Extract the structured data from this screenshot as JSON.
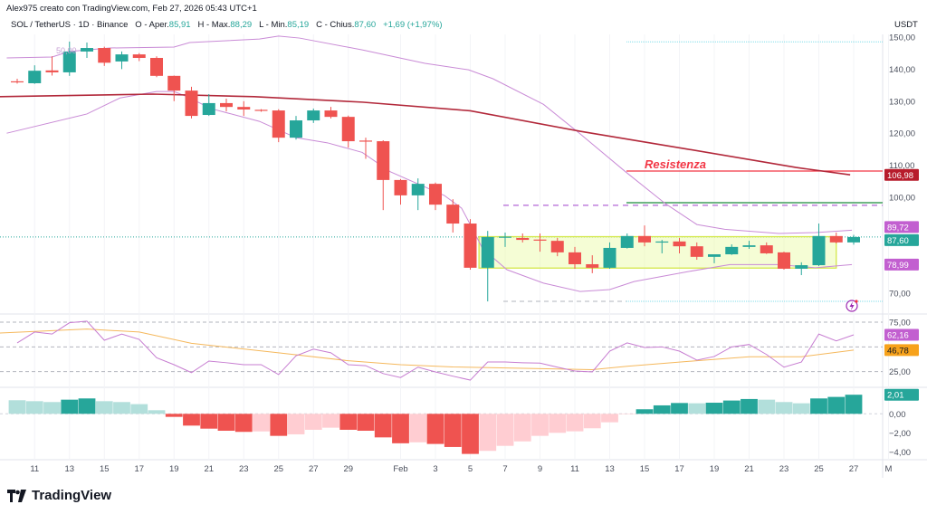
{
  "header": {
    "credit": "Alex975 creato con TradingView.com, Feb 27, 2026 05:43 UTC+1",
    "symbol": "SOL / TetherUS · 1D · Binance",
    "open_label": "O - Aper.",
    "open": "85,91",
    "high_label": "H - Max.",
    "high": "88,29",
    "low_label": "L - Min.",
    "low": "85,19",
    "close_label": "C - Chius.",
    "close": "87,60",
    "change": "+1,69 (+1,97%)"
  },
  "colors": {
    "up": "#26a69a",
    "down": "#ef5350",
    "up_light": "#b2dfdb",
    "down_light": "#ffcdd2",
    "ma": "#b2283a",
    "bands": "#c98bd6",
    "resistance": "#f23645",
    "rsi": "#c77dd1",
    "rsi_ma": "#f5b85c"
  },
  "price_axis": {
    "currency": "USDT",
    "ticks": [
      {
        "v": 150,
        "t": "150,00"
      },
      {
        "v": 140,
        "t": "140,00"
      },
      {
        "v": 130,
        "t": "130,00"
      },
      {
        "v": 120,
        "t": "120,00"
      },
      {
        "v": 110,
        "t": "110,00"
      },
      {
        "v": 100,
        "t": "100,00"
      },
      {
        "v": 70,
        "t": "70,00"
      }
    ],
    "badges": [
      {
        "v": 106.98,
        "t": "106,98",
        "color": "#b71c2c"
      },
      {
        "v": 89.72,
        "t": "89,72",
        "color": "#c25fd0"
      },
      {
        "v": 87.6,
        "t": "87,60",
        "color": "#26a69a"
      },
      {
        "v": 78.99,
        "t": "78,99",
        "color": "#c25fd0"
      }
    ]
  },
  "rsi_axis": {
    "ticks": [
      {
        "v": 75,
        "t": "75,00"
      },
      {
        "v": 25,
        "t": "25,00"
      }
    ],
    "badges": [
      {
        "v": 62.16,
        "t": "62,16",
        "color": "#c25fd0",
        "fg": "#fff"
      },
      {
        "v": 46.78,
        "t": "46,78",
        "color": "#f7a21b",
        "fg": "#131722"
      }
    ]
  },
  "macd_axis": {
    "ticks": [
      {
        "v": 0,
        "t": "0,00"
      },
      {
        "v": -2,
        "t": "−2,00"
      },
      {
        "v": -4,
        "t": "−4,00"
      }
    ],
    "badges": [
      {
        "v": 2.01,
        "t": "2,01",
        "color": "#26a69a"
      }
    ]
  },
  "time_axis": {
    "labels": [
      {
        "d": 1,
        "t": "11"
      },
      {
        "d": 3,
        "t": "13"
      },
      {
        "d": 5,
        "t": "15"
      },
      {
        "d": 7,
        "t": "17"
      },
      {
        "d": 9,
        "t": "19"
      },
      {
        "d": 11,
        "t": "21"
      },
      {
        "d": 13,
        "t": "23"
      },
      {
        "d": 15,
        "t": "25"
      },
      {
        "d": 17,
        "t": "27"
      },
      {
        "d": 19,
        "t": "29"
      },
      {
        "d": 22,
        "t": "Feb"
      },
      {
        "d": 24,
        "t": "3"
      },
      {
        "d": 26,
        "t": "5"
      },
      {
        "d": 28,
        "t": "7"
      },
      {
        "d": 30,
        "t": "9"
      },
      {
        "d": 32,
        "t": "11"
      },
      {
        "d": 34,
        "t": "13"
      },
      {
        "d": 36,
        "t": "15"
      },
      {
        "d": 38,
        "t": "17"
      },
      {
        "d": 40,
        "t": "19"
      },
      {
        "d": 42,
        "t": "21"
      },
      {
        "d": 44,
        "t": "23"
      },
      {
        "d": 46,
        "t": "25"
      },
      {
        "d": 48,
        "t": "27"
      },
      {
        "d": 50,
        "t": "M"
      }
    ]
  },
  "annotations": {
    "resistance_label": "Resistenza",
    "fib_label": "50,00"
  },
  "logo": {
    "text": "TradingView"
  },
  "chart_data": {
    "type": "candlestick",
    "first_date": "Jan 10",
    "last_date": "Feb 27",
    "ohlc": [
      [
        136.2,
        137,
        135.5,
        135.9
      ],
      [
        135.6,
        141.2,
        135.4,
        139.5
      ],
      [
        139.6,
        144,
        138,
        139
      ],
      [
        139,
        148.6,
        137.9,
        145.5
      ],
      [
        145.5,
        148.3,
        143.5,
        146.6
      ],
      [
        146.6,
        147,
        141,
        142
      ],
      [
        142.4,
        145.5,
        140,
        144.6
      ],
      [
        144.6,
        145,
        142.5,
        143.5
      ],
      [
        143.5,
        144,
        137.5,
        137.9
      ],
      [
        137.9,
        138,
        130,
        133.3
      ],
      [
        133.3,
        134.5,
        124.6,
        125.4
      ],
      [
        125.7,
        132.2,
        125.4,
        129.4
      ],
      [
        129.4,
        130.8,
        126.8,
        128.2
      ],
      [
        128.2,
        130,
        125.4,
        127.4
      ],
      [
        127.3,
        127.5,
        126.7,
        127.1
      ],
      [
        127.1,
        127.5,
        117.2,
        118.6
      ],
      [
        118.6,
        125.4,
        118,
        124
      ],
      [
        124,
        127.7,
        123.2,
        127.1
      ],
      [
        127.1,
        128.2,
        124.6,
        125.1
      ],
      [
        125.1,
        125.5,
        115.5,
        117.5
      ],
      [
        117.7,
        118.6,
        112,
        117.5
      ],
      [
        117.5,
        117.8,
        96,
        105.4
      ],
      [
        105.4,
        105.7,
        97.7,
        100.6
      ],
      [
        100.6,
        105.9,
        96,
        104.2
      ],
      [
        104.2,
        104.6,
        96,
        97.7
      ],
      [
        97.7,
        99.4,
        89,
        91.8
      ],
      [
        91.8,
        93.2,
        77.4,
        78
      ],
      [
        78,
        89.5,
        67.5,
        87.6
      ],
      [
        87.5,
        89,
        84.5,
        87.7
      ],
      [
        87.3,
        88.7,
        85.9,
        86.7
      ],
      [
        86.8,
        88.7,
        83,
        86.6
      ],
      [
        86.4,
        87.3,
        81.6,
        82.8
      ],
      [
        82.8,
        84.5,
        77.7,
        79.1
      ],
      [
        79.1,
        81.9,
        76.3,
        78
      ],
      [
        78,
        85.9,
        77.7,
        84.2
      ],
      [
        84.2,
        88.7,
        84,
        87.9
      ],
      [
        87.9,
        91.2,
        84.7,
        85.9
      ],
      [
        86,
        86.7,
        82.5,
        86.2
      ],
      [
        86.2,
        87.3,
        82.5,
        84.7
      ],
      [
        84.7,
        85.9,
        80.5,
        81.4
      ],
      [
        81.4,
        82.2,
        79.4,
        82.2
      ],
      [
        82.2,
        85.3,
        82,
        84.5
      ],
      [
        84.5,
        86.4,
        83.9,
        85
      ],
      [
        85,
        85.9,
        82.3,
        82.5
      ],
      [
        82.8,
        83,
        77.4,
        77.7
      ],
      [
        77.7,
        79.7,
        75.7,
        78.8
      ],
      [
        78.8,
        91.8,
        78.5,
        87.9
      ],
      [
        87.9,
        89,
        85.6,
        85.91
      ],
      [
        85.91,
        88.29,
        85.19,
        87.6
      ]
    ],
    "moving_average": [
      [
        -1,
        131.4
      ],
      [
        7.8,
        132.2
      ],
      [
        13.6,
        131.4
      ],
      [
        19.8,
        129.7
      ],
      [
        26,
        127
      ],
      [
        32.3,
        120.6
      ],
      [
        38.5,
        115
      ],
      [
        44.7,
        109.3
      ],
      [
        47.8,
        107
      ]
    ],
    "band_upper": [
      [
        -0.6,
        143.5
      ],
      [
        2,
        143.8
      ],
      [
        3,
        145.5
      ],
      [
        5.3,
        146.6
      ],
      [
        9,
        146.9
      ],
      [
        9.9,
        148.3
      ],
      [
        13.9,
        149.4
      ],
      [
        15,
        150.3
      ],
      [
        16.2,
        149.7
      ],
      [
        19.8,
        146
      ],
      [
        23.4,
        141.8
      ],
      [
        25.9,
        139.8
      ],
      [
        27.3,
        137
      ],
      [
        30.2,
        129
      ],
      [
        32.3,
        119.8
      ],
      [
        34.9,
        108
      ],
      [
        37.2,
        98
      ],
      [
        39,
        91.5
      ],
      [
        40.6,
        90
      ],
      [
        43.7,
        88.7
      ],
      [
        45.8,
        89
      ],
      [
        47.9,
        89.72
      ]
    ],
    "band_lower": [
      [
        -0.6,
        120
      ],
      [
        4,
        126
      ],
      [
        5.9,
        131
      ],
      [
        8,
        133
      ],
      [
        9,
        133
      ],
      [
        9.8,
        131.3
      ],
      [
        11.1,
        127.7
      ],
      [
        13.9,
        123.7
      ],
      [
        16,
        118.6
      ],
      [
        17.8,
        117
      ],
      [
        19.8,
        114
      ],
      [
        21.4,
        108
      ],
      [
        24.5,
        100.6
      ],
      [
        25.5,
        96.6
      ],
      [
        26,
        91.5
      ],
      [
        26.7,
        84
      ],
      [
        28.1,
        77.4
      ],
      [
        30.2,
        73.2
      ],
      [
        32.3,
        70.6
      ],
      [
        34,
        71.2
      ],
      [
        35.4,
        73.7
      ],
      [
        38.5,
        76.8
      ],
      [
        40.9,
        79
      ],
      [
        43.7,
        79
      ],
      [
        45.8,
        78
      ],
      [
        47.9,
        78.99
      ]
    ],
    "resistance_level": 108.2,
    "green_level": 98.3,
    "purple_dashed_level": 97.5,
    "top_level": 148.5,
    "bottom_level": 67.5,
    "range_box": {
      "from_day": 26.5,
      "to_day": 47,
      "top": 87.7,
      "bottom": 77.9
    },
    "last_price_line": 87.6,
    "rsi": [
      54,
      65,
      63,
      74.4,
      76,
      56.7,
      63,
      57.6,
      39,
      32,
      24,
      35.7,
      34,
      32,
      32,
      22,
      41,
      47.8,
      44,
      32,
      31,
      23,
      19,
      29.5,
      24.7,
      20.4,
      16.4,
      34.7,
      34.7,
      34,
      33.6,
      29.5,
      25.6,
      24.7,
      45.7,
      54,
      49.4,
      50,
      45.7,
      36.6,
      40.3,
      50,
      52.4,
      42.3,
      29.5,
      34.7,
      63,
      56,
      62.16
    ],
    "rsi_ma": [
      [
        -1,
        64
      ],
      [
        4,
        68
      ],
      [
        7,
        65
      ],
      [
        10,
        53.6
      ],
      [
        15,
        44
      ],
      [
        19,
        36
      ],
      [
        22,
        32
      ],
      [
        25,
        29.7
      ],
      [
        33,
        27
      ],
      [
        35,
        30.4
      ],
      [
        39,
        36
      ],
      [
        42,
        40
      ],
      [
        45,
        40
      ],
      [
        48,
        46.78
      ]
    ],
    "rsi_levels": [
      75,
      50,
      25
    ],
    "macd_histogram": [
      1.43,
      1.33,
      1.24,
      1.49,
      1.62,
      1.33,
      1.24,
      1.02,
      0.38,
      -0.32,
      -1.24,
      -1.56,
      -1.78,
      -1.9,
      -1.85,
      -2.32,
      -2.16,
      -1.68,
      -1.46,
      -1.68,
      -1.78,
      -2.48,
      -3.1,
      -3.0,
      -3.17,
      -3.49,
      -4.22,
      -3.9,
      -3.37,
      -2.9,
      -2.32,
      -2.0,
      -1.84,
      -1.52,
      -0.89,
      -0.05,
      0.48,
      0.89,
      1.14,
      1.11,
      1.17,
      1.4,
      1.56,
      1.49,
      1.24,
      1.11,
      1.62,
      1.78,
      2.01
    ]
  }
}
